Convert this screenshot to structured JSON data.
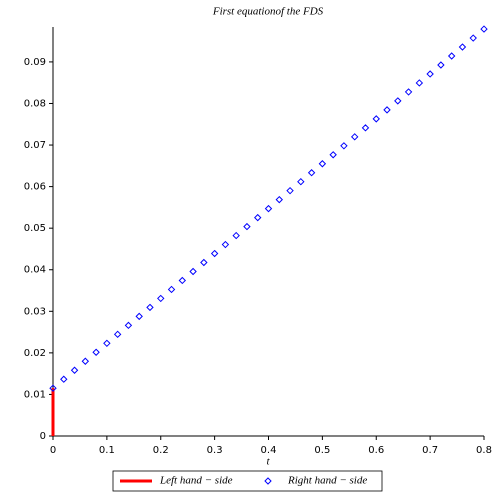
{
  "chart_data": {
    "type": "line",
    "title": "First equationof the FDS",
    "x_label": "t",
    "xlim": [
      0,
      0.8
    ],
    "xticks": [
      0,
      0.1,
      0.2,
      0.3,
      0.4,
      0.5,
      0.6,
      0.7,
      0.8
    ],
    "ylim": [
      0,
      0.0984
    ],
    "yticks": [
      0,
      0.01,
      0.02,
      0.03,
      0.04,
      0.05,
      0.06,
      0.07,
      0.08,
      0.09
    ],
    "legend": "bottom",
    "series": [
      {
        "name": "Left hand − side",
        "color": "#ff0000",
        "style": "line",
        "x": [
          0,
          0
        ],
        "values": [
          0,
          0.0115
        ]
      },
      {
        "name": "Right hand − side",
        "color": "#0000ff",
        "style": "diamond",
        "x": [
          0,
          0.02,
          0.04,
          0.06,
          0.08,
          0.1,
          0.12,
          0.14,
          0.16,
          0.18,
          0.2,
          0.22,
          0.24,
          0.26,
          0.28,
          0.3,
          0.32,
          0.34,
          0.36,
          0.38,
          0.4,
          0.42,
          0.44,
          0.46,
          0.48,
          0.5,
          0.52,
          0.54,
          0.56,
          0.58,
          0.6,
          0.62,
          0.64,
          0.66,
          0.68,
          0.7,
          0.72,
          0.74,
          0.76,
          0.78,
          0.8
        ],
        "values": [
          0.0115,
          0.01366,
          0.01582,
          0.01798,
          0.02014,
          0.0223,
          0.02446,
          0.02662,
          0.02878,
          0.03094,
          0.0331,
          0.03526,
          0.03742,
          0.03958,
          0.04174,
          0.0439,
          0.04606,
          0.04822,
          0.05038,
          0.05254,
          0.0547,
          0.05686,
          0.05902,
          0.06118,
          0.06334,
          0.0655,
          0.06766,
          0.06982,
          0.07198,
          0.07414,
          0.0763,
          0.07846,
          0.08062,
          0.08278,
          0.08494,
          0.0871,
          0.08926,
          0.09142,
          0.09358,
          0.09574,
          0.0979
        ]
      }
    ]
  }
}
